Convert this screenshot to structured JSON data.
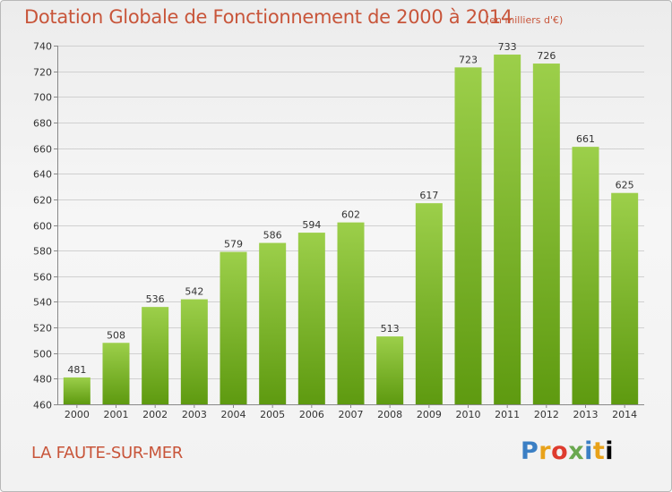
{
  "title": "Dotation Globale de Fonctionnement de 2000 à 2014",
  "unit": "(en milliers d'€)",
  "commune": "LA FAUTE-SUR-MER",
  "logo": [
    "P",
    "r",
    "o",
    "x",
    "i",
    "t",
    "i"
  ],
  "chart_data": {
    "type": "bar",
    "title": "Dotation Globale de Fonctionnement de 2000 à 2014",
    "subtitle": "(en milliers d'€)",
    "categories": [
      "2000",
      "2001",
      "2002",
      "2003",
      "2004",
      "2005",
      "2006",
      "2007",
      "2008",
      "2009",
      "2010",
      "2011",
      "2012",
      "2013",
      "2014"
    ],
    "values": [
      481,
      508,
      536,
      542,
      579,
      586,
      594,
      602,
      513,
      617,
      723,
      733,
      726,
      661,
      625
    ],
    "ylim": [
      460,
      740
    ],
    "yticks": [
      460,
      480,
      500,
      520,
      540,
      560,
      580,
      600,
      620,
      640,
      660,
      680,
      700,
      720,
      740
    ],
    "grid": true,
    "colors": {
      "bar_top": "#9ccf4a",
      "bar_bottom": "#5e9a10",
      "grid": "#d0d0d0"
    }
  }
}
